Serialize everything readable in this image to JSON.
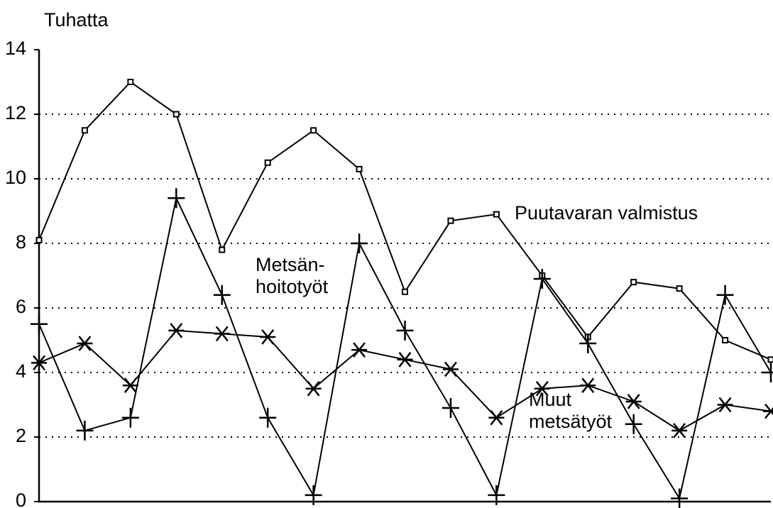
{
  "chart_data": {
    "type": "line",
    "y_label": "Tuhatta",
    "categories": [
      null,
      null,
      null,
      null,
      null,
      null,
      null,
      null,
      null,
      null,
      null,
      null,
      null,
      null,
      null,
      null,
      null
    ],
    "series": [
      {
        "name": [
          "Puutavaran valmistus"
        ],
        "color": "#000000",
        "marker": "square",
        "values": [
          8.1,
          11.5,
          13.0,
          12.0,
          7.8,
          10.5,
          11.5,
          10.3,
          6.5,
          8.7,
          8.9,
          7.0,
          5.1,
          6.8,
          6.6,
          5.0,
          4.4
        ]
      },
      {
        "name": [
          "Metsän-",
          "hoitotyöt"
        ],
        "color": "#000000",
        "marker": "plus",
        "values": [
          5.5,
          2.2,
          2.6,
          9.4,
          6.4,
          2.6,
          0.2,
          8.0,
          5.3,
          2.9,
          0.2,
          6.9,
          4.9,
          2.4,
          0.1,
          6.4,
          4.0
        ]
      },
      {
        "name": [
          "Muut",
          "metsätyöt"
        ],
        "color": "#000000",
        "marker": "asterisk",
        "values": [
          4.3,
          4.9,
          3.6,
          5.3,
          5.2,
          5.1,
          3.5,
          4.7,
          4.4,
          4.1,
          2.6,
          3.5,
          3.6,
          3.1,
          2.2,
          3.0,
          2.8
        ]
      }
    ],
    "ylim": [
      0,
      14
    ],
    "yticks": [
      0,
      2,
      4,
      6,
      8,
      10,
      12,
      14
    ],
    "grid": true
  }
}
